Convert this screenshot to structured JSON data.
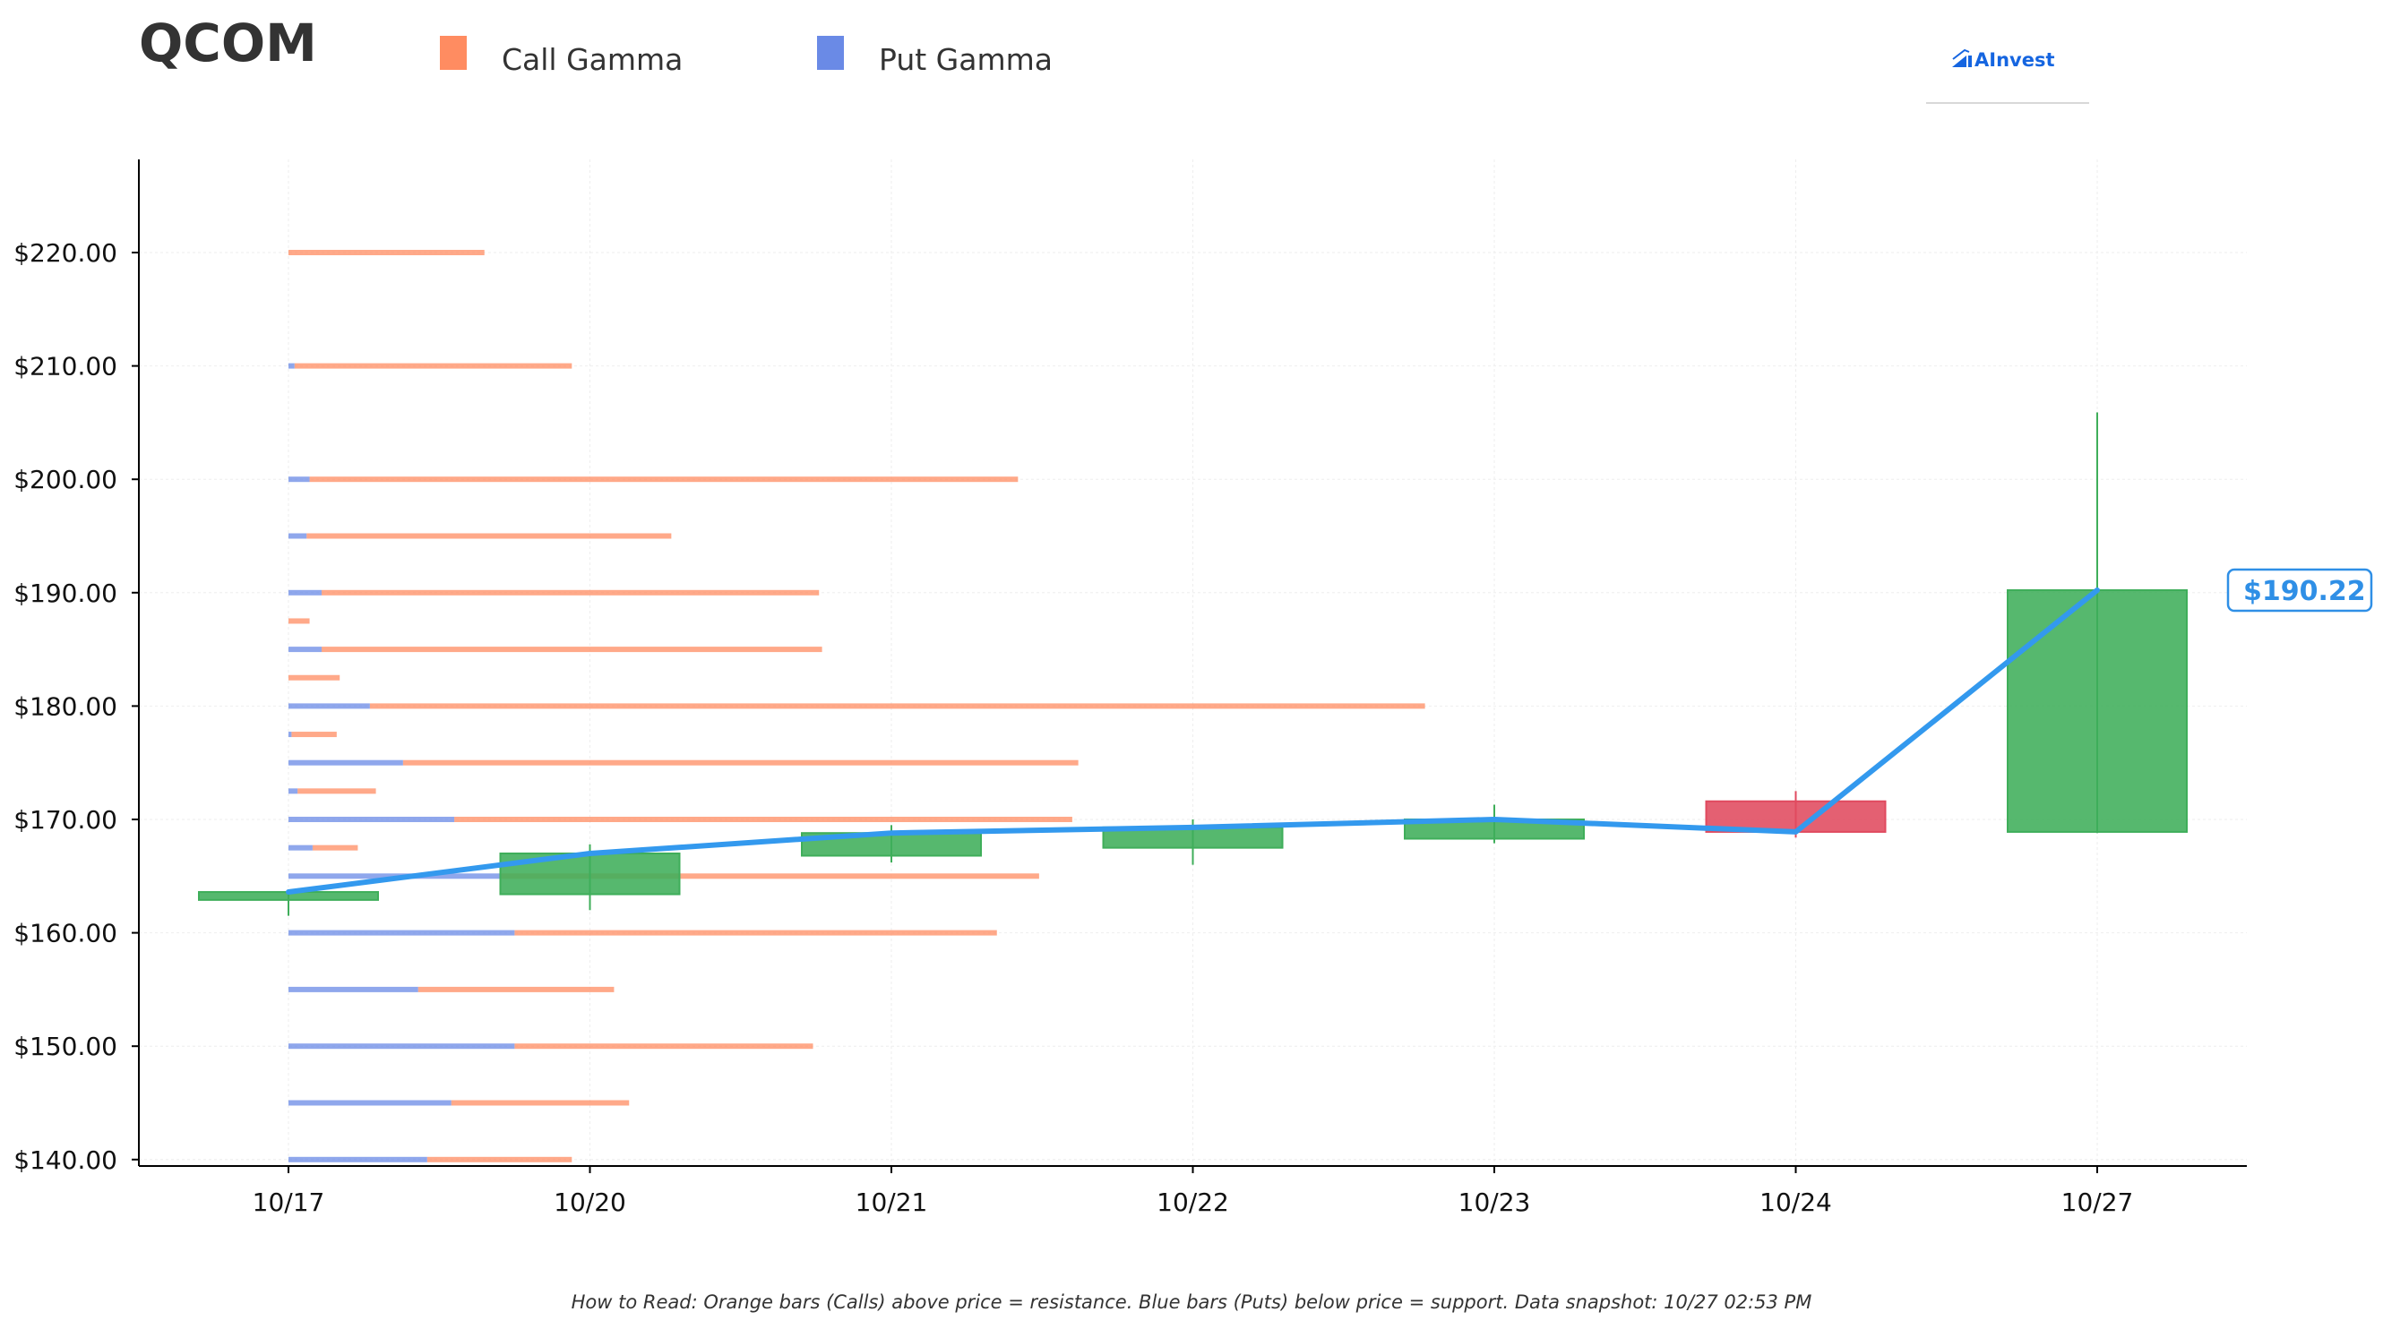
{
  "header": {
    "ticker": "QCOM",
    "logo_text": "AInvest"
  },
  "legend": [
    {
      "label": "Call Gamma",
      "color": "#ff8c61"
    },
    {
      "label": "Put Gamma",
      "color": "#6a8ae6"
    }
  ],
  "footer": {
    "note": "How to Read: Orange bars (Calls) above price = resistance. Blue bars (Puts) below price = support. Data snapshot: 10/27 02:53 PM"
  },
  "chart_data": {
    "type": "candlestick",
    "title": "QCOM",
    "ylim": [
      139.5,
      228
    ],
    "y_ticks": [
      {
        "value": 140,
        "label": "$140.00"
      },
      {
        "value": 150,
        "label": "$150.00"
      },
      {
        "value": 160,
        "label": "$160.00"
      },
      {
        "value": 170,
        "label": "$170.00"
      },
      {
        "value": 180,
        "label": "$180.00"
      },
      {
        "value": 190,
        "label": "$190.00"
      },
      {
        "value": 200,
        "label": "$200.00"
      },
      {
        "value": 210,
        "label": "$210.00"
      },
      {
        "value": 220,
        "label": "$220.00"
      }
    ],
    "dates": [
      "10/17",
      "10/20",
      "10/21",
      "10/22",
      "10/23",
      "10/24",
      "10/27"
    ],
    "candles": [
      {
        "date": "10/17",
        "open": 162.9,
        "high": 163.8,
        "low": 161.5,
        "close": 163.6
      },
      {
        "date": "10/20",
        "open": 163.4,
        "high": 167.8,
        "low": 162.0,
        "close": 167.0
      },
      {
        "date": "10/21",
        "open": 166.8,
        "high": 169.5,
        "low": 166.2,
        "close": 168.8
      },
      {
        "date": "10/22",
        "open": 167.5,
        "high": 170.0,
        "low": 166.0,
        "close": 169.3
      },
      {
        "date": "10/23",
        "open": 168.3,
        "high": 171.3,
        "low": 167.9,
        "close": 170.0
      },
      {
        "date": "10/24",
        "open": 171.6,
        "high": 172.5,
        "low": 168.4,
        "close": 168.9
      },
      {
        "date": "10/27",
        "open": 168.9,
        "high": 205.9,
        "low": 168.8,
        "close": 190.22
      }
    ],
    "close_line": {
      "color": "#3399ee",
      "values": [
        163.6,
        167.0,
        168.8,
        169.3,
        170.0,
        168.9,
        190.22
      ]
    },
    "last_price": {
      "value": 190.22,
      "label": "$190.22"
    },
    "candle_colors": {
      "up": "#3fae5a",
      "down": "#e04a5f"
    },
    "gamma_unit_note": "bar lengths in x-axis day units from 10/17",
    "gamma": [
      {
        "strike": 220.0,
        "put": 0.0,
        "call": 0.65
      },
      {
        "strike": 210.0,
        "put": 0.02,
        "call": 0.92
      },
      {
        "strike": 200.0,
        "put": 0.07,
        "call": 2.35
      },
      {
        "strike": 195.0,
        "put": 0.06,
        "call": 1.21
      },
      {
        "strike": 190.0,
        "put": 0.11,
        "call": 1.65
      },
      {
        "strike": 187.5,
        "put": 0.0,
        "call": 0.07
      },
      {
        "strike": 185.0,
        "put": 0.11,
        "call": 1.66
      },
      {
        "strike": 182.5,
        "put": 0.0,
        "call": 0.17
      },
      {
        "strike": 180.0,
        "put": 0.27,
        "call": 3.5
      },
      {
        "strike": 177.5,
        "put": 0.01,
        "call": 0.15
      },
      {
        "strike": 175.0,
        "put": 0.38,
        "call": 2.24
      },
      {
        "strike": 172.5,
        "put": 0.03,
        "call": 0.26
      },
      {
        "strike": 170.0,
        "put": 0.55,
        "call": 2.05
      },
      {
        "strike": 167.5,
        "put": 0.08,
        "call": 0.15
      },
      {
        "strike": 165.0,
        "put": 0.7,
        "call": 1.79
      },
      {
        "strike": 160.0,
        "put": 0.75,
        "call": 1.6
      },
      {
        "strike": 155.0,
        "put": 0.43,
        "call": 0.65
      },
      {
        "strike": 150.0,
        "put": 0.75,
        "call": 0.99
      },
      {
        "strike": 145.0,
        "put": 0.54,
        "call": 0.59
      },
      {
        "strike": 140.0,
        "put": 0.46,
        "call": 0.48
      }
    ]
  }
}
